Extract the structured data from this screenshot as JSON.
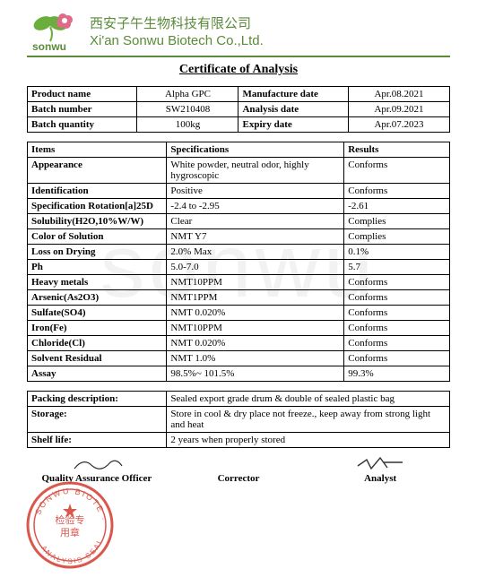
{
  "company": {
    "cn": "西安子午生物科技有限公司",
    "en": "Xi'an Sonwu Biotech Co.,Ltd.",
    "logo_text": "sonwu",
    "logo_colors": {
      "leaf": "#6cae3e",
      "flower": "#e06a8a"
    }
  },
  "doc_title": "Certificate of Analysis",
  "info": [
    {
      "k1": "Product name",
      "v1": "Alpha GPC",
      "k2": "Manufacture date",
      "v2": "Apr.08.2021"
    },
    {
      "k1": "Batch number",
      "v1": "SW210408",
      "k2": "Analysis date",
      "v2": "Apr.09.2021"
    },
    {
      "k1": "Batch quantity",
      "v1": "100kg",
      "k2": "Expiry date",
      "v2": "Apr.07.2023"
    }
  ],
  "spec_header": {
    "c1": "Items",
    "c2": "Specifications",
    "c3": "Results"
  },
  "specs": [
    {
      "i": "Appearance",
      "s": "White powder, neutral odor, highly hygroscopic",
      "r": "Conforms",
      "ibold": true
    },
    {
      "i": "Identification",
      "s": "Positive",
      "r": "Conforms",
      "ibold": true
    },
    {
      "i": "Specification Rotation[a]25D",
      "s": "-2.4 to -2.95",
      "r": "-2.61",
      "ibold": true
    },
    {
      "i": "Solubility(H2O,10%W/W)",
      "s": "Clear",
      "r": "Complies",
      "ibold": true
    },
    {
      "i": "Color of Solution",
      "s": "NMT Y7",
      "r": "Complies",
      "ibold": true
    },
    {
      "i": "Loss on Drying",
      "s": "2.0% Max",
      "r": "0.1%",
      "ibold": true
    },
    {
      "i": "Ph",
      "s": "5.0-7.0",
      "r": "5.7",
      "ibold": true
    },
    {
      "i": "Heavy metals",
      "s": "NMT10PPM",
      "r": "Conforms",
      "ibold": true
    },
    {
      "i": "Arsenic(As2O3)",
      "s": "NMT1PPM",
      "r": "Conforms",
      "ibold": true
    },
    {
      "i": "Sulfate(SO4)",
      "s": "NMT 0.020%",
      "r": "Conforms",
      "ibold": true
    },
    {
      "i": "Iron(Fe)",
      "s": "NMT10PPM",
      "r": "Conforms",
      "ibold": true
    },
    {
      "i": "Chloride(Cl)",
      "s": "NMT 0.020%",
      "r": "Conforms",
      "ibold": true
    },
    {
      "i": "Solvent Residual",
      "s": "NMT 1.0%",
      "r": "Conforms",
      "ibold": true
    },
    {
      "i": "Assay",
      "s": "98.5%~ 101.5%",
      "r": "99.3%",
      "ibold": true
    }
  ],
  "packing": [
    {
      "k": "Packing description:",
      "v": "Sealed export grade drum & double of sealed plastic bag"
    },
    {
      "k": "Storage:",
      "v": "Store in cool & dry place not freeze., keep away from strong light and heat"
    },
    {
      "k": "Shelf life:",
      "v": "2 years when properly stored"
    }
  ],
  "signatures": {
    "qa": "Quality Assurance Officer",
    "corrector": "Corrector",
    "analyst": "Analyst"
  },
  "watermark": "sonwu",
  "stamp": {
    "color": "#d43a2f",
    "text_outer": "SONWU BIOTE",
    "text_outer2": "ANALYSIS SEAL",
    "text_center": "检验专用章"
  }
}
